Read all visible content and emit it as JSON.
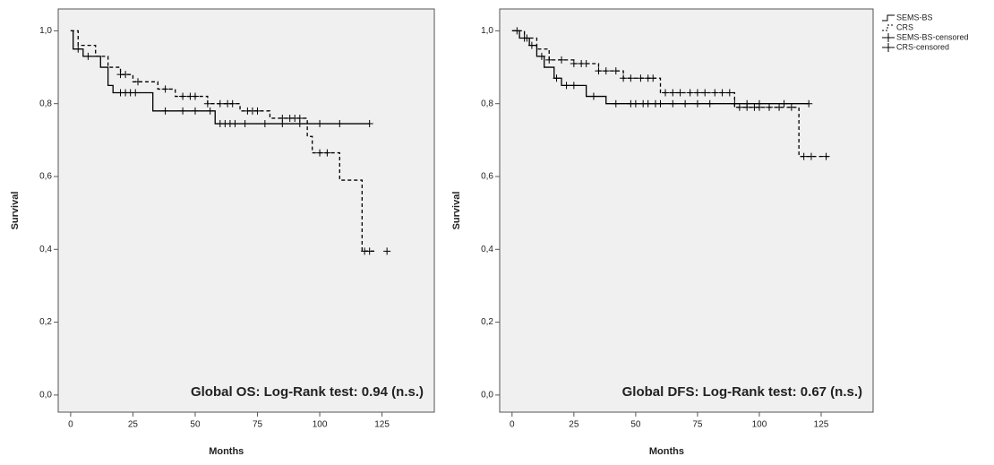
{
  "chart_data": [
    {
      "type": "line",
      "annotation": "Global OS: Log-Rank test: 0.94 (n.s.)",
      "xlabel": "Months",
      "ylabel": "Survival",
      "xlim": [
        -5,
        146
      ],
      "ylim": [
        -0.047,
        1.06
      ],
      "xticks": [
        0,
        25,
        50,
        75,
        100,
        125
      ],
      "yticks": [
        {
          "value": 0,
          "label": "0,0"
        },
        {
          "value": 0.2,
          "label": "0,2"
        },
        {
          "value": 0.4,
          "label": "0,4"
        },
        {
          "value": 0.6,
          "label": "0,6"
        },
        {
          "value": 0.8,
          "label": "0,8"
        },
        {
          "value": 1.0,
          "label": "1,0"
        }
      ],
      "series": [
        {
          "type": "step",
          "color": "#000000",
          "dashed": false,
          "x": [
            0,
            1,
            5,
            12,
            15,
            17,
            33,
            58,
            120
          ],
          "values": [
            1.0,
            0.95,
            0.93,
            0.9,
            0.85,
            0.83,
            0.78,
            0.745,
            0.745
          ]
        },
        {
          "type": "step",
          "color": "#000000",
          "dashed": true,
          "x": [
            0,
            3,
            10,
            15,
            20,
            25,
            35,
            42,
            55,
            68,
            80,
            95,
            97,
            108,
            117,
            122
          ],
          "values": [
            1.0,
            0.96,
            0.93,
            0.9,
            0.88,
            0.86,
            0.84,
            0.82,
            0.8,
            0.78,
            0.76,
            0.71,
            0.665,
            0.59,
            0.395,
            0.395
          ]
        },
        {
          "type": "censored",
          "color": "#000000",
          "x": [
            3,
            7,
            20,
            22,
            24,
            26,
            38,
            45,
            50,
            56,
            60,
            62,
            64,
            66,
            70,
            78,
            85,
            92,
            100,
            108,
            120
          ],
          "values": [
            0.95,
            0.93,
            0.83,
            0.83,
            0.83,
            0.83,
            0.78,
            0.78,
            0.78,
            0.78,
            0.745,
            0.745,
            0.745,
            0.745,
            0.745,
            0.745,
            0.745,
            0.745,
            0.745,
            0.745,
            0.745
          ]
        },
        {
          "type": "censored",
          "color": "#000000",
          "x": [
            20,
            22,
            27,
            38,
            45,
            48,
            50,
            55,
            60,
            63,
            65,
            71,
            73,
            75,
            85,
            88,
            90,
            92,
            100,
            103,
            118,
            120,
            127
          ],
          "values": [
            0.88,
            0.88,
            0.86,
            0.84,
            0.82,
            0.82,
            0.82,
            0.8,
            0.8,
            0.8,
            0.8,
            0.78,
            0.78,
            0.78,
            0.76,
            0.76,
            0.76,
            0.76,
            0.665,
            0.665,
            0.395,
            0.395,
            0.395
          ]
        }
      ]
    },
    {
      "type": "line",
      "annotation": "Global DFS: Log-Rank test: 0.67 (n.s.)",
      "xlabel": "Months",
      "ylabel": "Survival",
      "xlim": [
        -5,
        146
      ],
      "ylim": [
        -0.047,
        1.06
      ],
      "xticks": [
        0,
        25,
        50,
        75,
        100,
        125
      ],
      "yticks": [
        {
          "value": 0,
          "label": "0,0"
        },
        {
          "value": 0.2,
          "label": "0,2"
        },
        {
          "value": 0.4,
          "label": "0,4"
        },
        {
          "value": 0.6,
          "label": "0,6"
        },
        {
          "value": 0.8,
          "label": "0,8"
        },
        {
          "value": 1.0,
          "label": "1,0"
        }
      ],
      "legend": "outside-right",
      "series": [
        {
          "name": "SEMS-BS",
          "type": "step",
          "color": "#000000",
          "dashed": false,
          "x": [
            0,
            3,
            7,
            10,
            13,
            17,
            20,
            30,
            38,
            120
          ],
          "values": [
            1.0,
            0.98,
            0.96,
            0.93,
            0.9,
            0.87,
            0.85,
            0.82,
            0.8,
            0.8
          ]
        },
        {
          "name": "CRS",
          "type": "step",
          "color": "#000000",
          "dashed": true,
          "x": [
            0,
            5,
            10,
            15,
            25,
            35,
            45,
            60,
            90,
            116,
            128
          ],
          "values": [
            1.0,
            0.98,
            0.95,
            0.92,
            0.91,
            0.89,
            0.87,
            0.83,
            0.79,
            0.655,
            0.655
          ]
        },
        {
          "name": "SEMS-BS-censored",
          "type": "censored",
          "color": "#000000",
          "x": [
            2,
            5,
            8,
            12,
            18,
            22,
            25,
            33,
            42,
            48,
            50,
            53,
            55,
            58,
            60,
            65,
            70,
            75,
            80,
            90,
            95,
            100,
            110,
            120
          ],
          "values": [
            1.0,
            0.98,
            0.96,
            0.93,
            0.87,
            0.85,
            0.85,
            0.82,
            0.8,
            0.8,
            0.8,
            0.8,
            0.8,
            0.8,
            0.8,
            0.8,
            0.8,
            0.8,
            0.8,
            0.8,
            0.8,
            0.8,
            0.8,
            0.8
          ]
        },
        {
          "name": "CRS-censored",
          "type": "censored",
          "color": "#000000",
          "x": [
            6,
            15,
            20,
            25,
            28,
            30,
            35,
            38,
            42,
            45,
            48,
            52,
            55,
            57,
            62,
            65,
            68,
            72,
            75,
            78,
            82,
            85,
            88,
            92,
            95,
            98,
            100,
            104,
            108,
            113,
            118,
            121,
            127
          ],
          "values": [
            0.98,
            0.92,
            0.92,
            0.91,
            0.91,
            0.91,
            0.89,
            0.89,
            0.89,
            0.87,
            0.87,
            0.87,
            0.87,
            0.87,
            0.83,
            0.83,
            0.83,
            0.83,
            0.83,
            0.83,
            0.83,
            0.83,
            0.83,
            0.79,
            0.79,
            0.79,
            0.79,
            0.79,
            0.79,
            0.79,
            0.655,
            0.655,
            0.655
          ]
        }
      ]
    }
  ]
}
